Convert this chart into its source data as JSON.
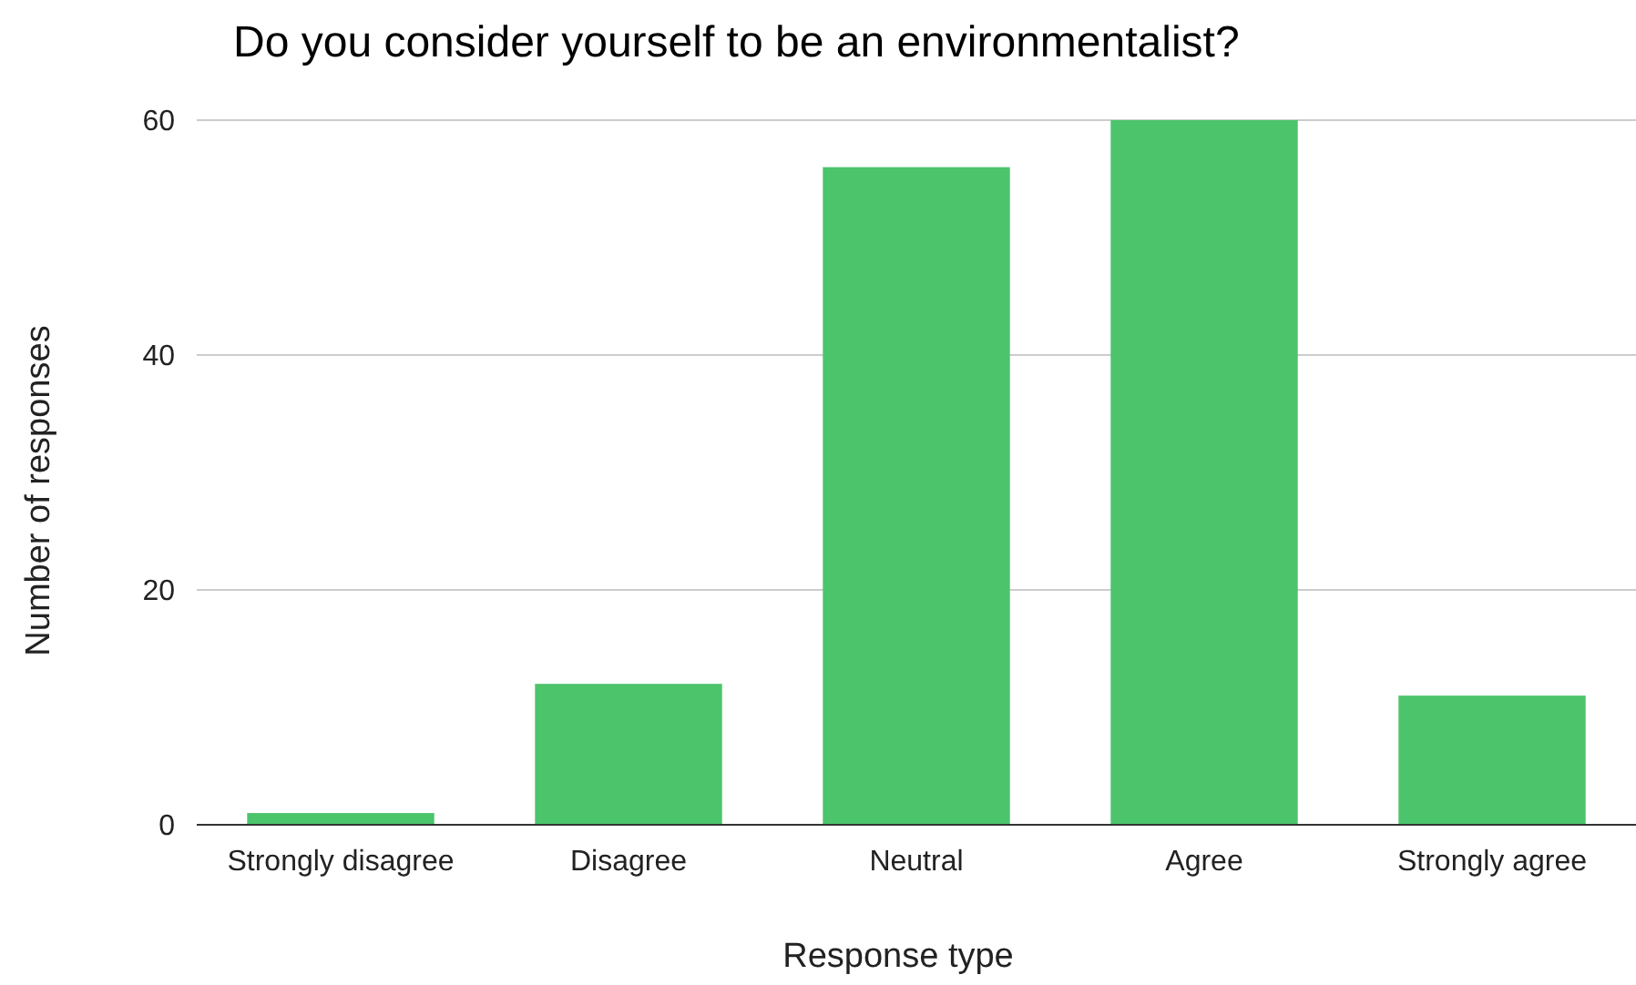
{
  "chart_data": {
    "type": "bar",
    "title": "Do you consider yourself to be an environmentalist?",
    "xlabel": "Response type",
    "ylabel": "Number of responses",
    "categories": [
      "Strongly disagree",
      "Disagree",
      "Neutral",
      "Agree",
      "Strongly agree"
    ],
    "values": [
      1,
      12,
      56,
      60,
      11
    ],
    "color": "#4cc46c",
    "ylim": [
      0,
      60
    ],
    "yticks": [
      0,
      20,
      40,
      60
    ],
    "grid": "y"
  }
}
